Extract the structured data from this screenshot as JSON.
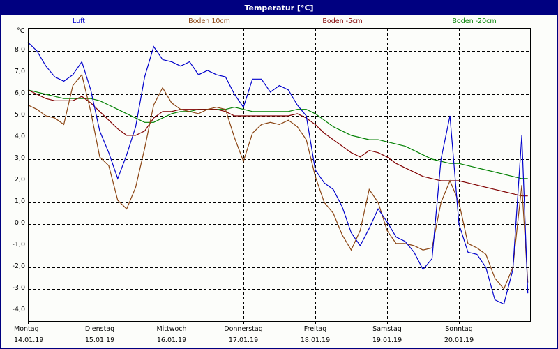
{
  "window": {
    "title": "Temperatur [°C]",
    "background": "#fcfdfa",
    "title_bg": "#000080"
  },
  "legend": [
    {
      "label": "Luft",
      "color": "#0000cc"
    },
    {
      "label": "Boden 10cm",
      "color": "#8b4513"
    },
    {
      "label": "Boden -5cm",
      "color": "#800000"
    },
    {
      "label": "Boden -20cm",
      "color": "#008000"
    }
  ],
  "axes": {
    "y_unit": "°C",
    "y_ticks": [
      "8,0",
      "7,0",
      "6,0",
      "5,0",
      "4,0",
      "3,0",
      "2,0",
      "1,0",
      "0,0",
      "-1,0",
      "-2,0",
      "-3,0",
      "-4,0"
    ],
    "x_days": [
      {
        "day": "Montag",
        "date": "14.01.19"
      },
      {
        "day": "Dienstag",
        "date": "15.01.19"
      },
      {
        "day": "Mittwoch",
        "date": "16.01.19"
      },
      {
        "day": "Donnerstag",
        "date": "17.01.19"
      },
      {
        "day": "Freitag",
        "date": "18.01.19"
      },
      {
        "day": "Samstag",
        "date": "19.01.19"
      },
      {
        "day": "Sonntag",
        "date": "20.01.19"
      }
    ]
  },
  "chart_data": {
    "type": "line",
    "title": "Temperatur [°C]",
    "xlabel": "",
    "ylabel": "°C",
    "ylim": [
      -4.5,
      8.5
    ],
    "grid": true,
    "legend_position": "top",
    "x_unit": "hours since Montag 14.01.19 00:00",
    "x_categories": [
      "Montag 14.01.19",
      "Dienstag 15.01.19",
      "Mittwoch 16.01.19",
      "Donnerstag 17.01.19",
      "Freitag 18.01.19",
      "Samstag 19.01.19",
      "Sonntag 20.01.19"
    ],
    "x": [
      0,
      3,
      6,
      9,
      12,
      15,
      18,
      21,
      24,
      27,
      30,
      33,
      36,
      39,
      42,
      45,
      48,
      51,
      54,
      57,
      60,
      63,
      66,
      69,
      72,
      75,
      78,
      81,
      84,
      87,
      90,
      93,
      96,
      99,
      102,
      105,
      108,
      111,
      114,
      117,
      120,
      123,
      126,
      129,
      132,
      135,
      138,
      141,
      144,
      147,
      150,
      153,
      156,
      159,
      162,
      165
    ],
    "series": [
      {
        "name": "Luft",
        "color": "#0000cc",
        "values": [
          8.4,
          8.0,
          7.3,
          6.8,
          6.6,
          6.9,
          7.5,
          6.2,
          4.3,
          3.3,
          2.1,
          3.2,
          4.5,
          6.8,
          8.2,
          7.6,
          7.5,
          7.3,
          7.5,
          6.9,
          7.1,
          6.9,
          6.8,
          6.0,
          5.4,
          6.7,
          6.7,
          6.1,
          6.4,
          6.2,
          5.5,
          5.0,
          2.5,
          1.9,
          1.6,
          0.8,
          -0.4,
          -1.0,
          -0.2,
          0.7,
          0.1,
          -0.6,
          -0.8,
          -1.3,
          -2.1,
          -1.6,
          3.0,
          5.0,
          0.0,
          -1.3,
          -1.4,
          -2.0,
          -3.5,
          -3.7,
          -2.1,
          4.1
        ]
      },
      {
        "name": "Boden 10cm",
        "color": "#8b4513",
        "values": [
          5.5,
          5.3,
          5.0,
          4.9,
          4.6,
          6.4,
          6.9,
          5.2,
          3.1,
          2.7,
          1.1,
          0.7,
          1.7,
          3.5,
          5.5,
          6.3,
          5.6,
          5.3,
          5.2,
          5.1,
          5.3,
          5.4,
          5.3,
          4.0,
          2.9,
          4.2,
          4.6,
          4.7,
          4.6,
          4.8,
          4.5,
          3.9,
          2.2,
          1.0,
          0.5,
          -0.5,
          -1.2,
          -0.3,
          1.6,
          1.0,
          -0.3,
          -0.9,
          -0.9,
          -1.0,
          -1.2,
          -1.1,
          1.0,
          2.0,
          1.0,
          -0.9,
          -1.1,
          -1.4,
          -2.5,
          -3.0,
          -2.0,
          1.8
        ]
      },
      {
        "name": "Boden -5cm",
        "color": "#800000",
        "values": [
          6.2,
          6.0,
          5.8,
          5.7,
          5.7,
          5.7,
          5.9,
          5.6,
          5.2,
          4.8,
          4.4,
          4.1,
          4.1,
          4.3,
          4.9,
          5.2,
          5.2,
          5.3,
          5.3,
          5.3,
          5.3,
          5.3,
          5.2,
          5.0,
          5.0,
          5.0,
          5.0,
          5.0,
          5.0,
          5.0,
          5.1,
          4.9,
          4.6,
          4.2,
          3.9,
          3.6,
          3.3,
          3.1,
          3.4,
          3.3,
          3.1,
          2.8,
          2.6,
          2.4,
          2.2,
          2.1,
          2.0,
          2.0,
          2.0,
          1.9,
          1.8,
          1.7,
          1.6,
          1.5,
          1.4,
          1.3
        ]
      },
      {
        "name": "Boden -20cm",
        "color": "#008000",
        "values": [
          6.2,
          6.1,
          6.0,
          5.9,
          5.8,
          5.8,
          5.8,
          5.8,
          5.7,
          5.5,
          5.3,
          5.1,
          4.9,
          4.7,
          4.7,
          4.9,
          5.1,
          5.2,
          5.2,
          5.3,
          5.3,
          5.3,
          5.3,
          5.4,
          5.3,
          5.2,
          5.2,
          5.2,
          5.2,
          5.2,
          5.3,
          5.3,
          5.1,
          4.8,
          4.5,
          4.3,
          4.1,
          4.0,
          3.9,
          3.9,
          3.8,
          3.7,
          3.6,
          3.4,
          3.2,
          3.0,
          2.9,
          2.8,
          2.8,
          2.7,
          2.6,
          2.5,
          2.4,
          2.3,
          2.2,
          2.1
        ]
      }
    ]
  }
}
